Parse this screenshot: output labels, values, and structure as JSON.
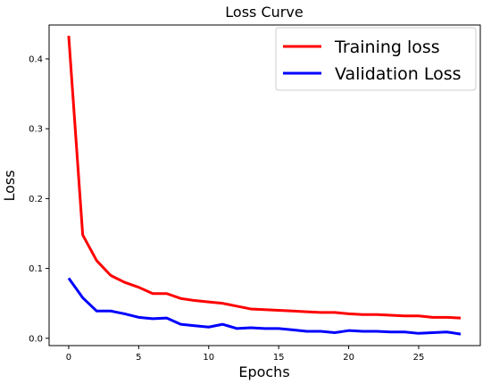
{
  "chart_data": {
    "type": "line",
    "title": "Loss Curve",
    "xlabel": "Epochs",
    "ylabel": "Loss",
    "xlim": [
      -1.4,
      29.4
    ],
    "ylim": [
      -0.0105,
      0.4485
    ],
    "xticks": [
      0,
      5,
      10,
      15,
      20,
      25
    ],
    "xtick_labels": [
      "0",
      "5",
      "10",
      "15",
      "20",
      "25"
    ],
    "yticks": [
      0.0,
      0.1,
      0.2,
      0.3,
      0.4
    ],
    "ytick_labels": [
      "0.0",
      "0.1",
      "0.2",
      "0.3",
      "0.4"
    ],
    "grid": false,
    "legend_position": "upper-right",
    "x": [
      0,
      1,
      2,
      3,
      4,
      5,
      6,
      7,
      8,
      9,
      10,
      11,
      12,
      13,
      14,
      15,
      16,
      17,
      18,
      19,
      20,
      21,
      22,
      23,
      24,
      25,
      26,
      27,
      28
    ],
    "series": [
      {
        "name": "Training loss",
        "color": "#ff0000",
        "values": [
          0.433,
          0.148,
          0.111,
          0.09,
          0.08,
          0.073,
          0.064,
          0.064,
          0.057,
          0.054,
          0.052,
          0.05,
          0.046,
          0.042,
          0.041,
          0.04,
          0.039,
          0.038,
          0.037,
          0.037,
          0.035,
          0.034,
          0.034,
          0.033,
          0.032,
          0.032,
          0.03,
          0.03,
          0.029
        ]
      },
      {
        "name": "Validation Loss",
        "color": "#0000ff",
        "values": [
          0.086,
          0.058,
          0.039,
          0.039,
          0.035,
          0.03,
          0.028,
          0.029,
          0.02,
          0.018,
          0.016,
          0.02,
          0.014,
          0.015,
          0.014,
          0.014,
          0.012,
          0.01,
          0.01,
          0.008,
          0.011,
          0.01,
          0.01,
          0.009,
          0.009,
          0.007,
          0.008,
          0.009,
          0.006
        ]
      }
    ]
  }
}
